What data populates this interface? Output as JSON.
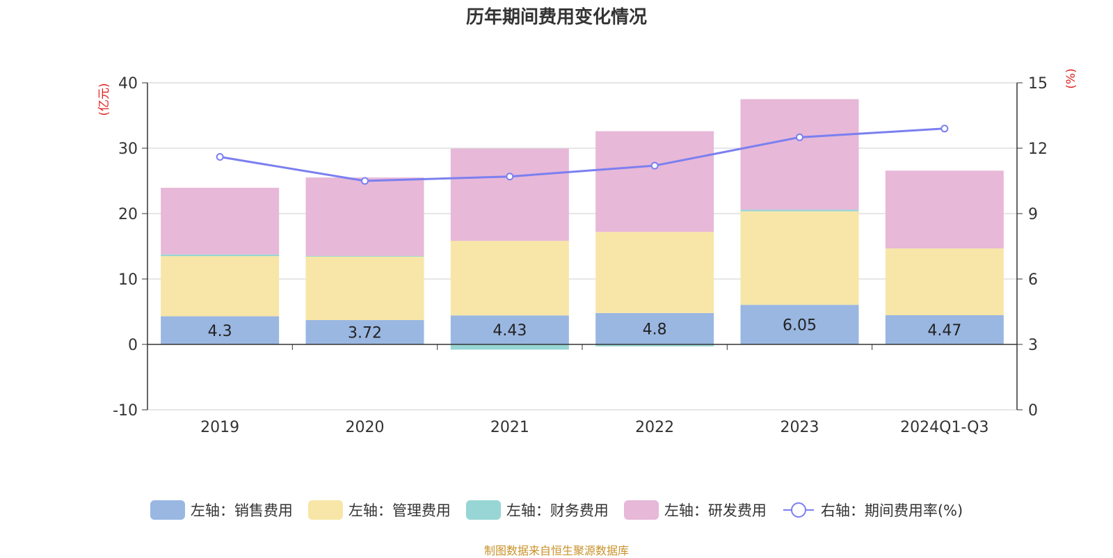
{
  "chart_data": {
    "type": "bar",
    "title": "历年期间费用变化情况",
    "categories": [
      "2019",
      "2020",
      "2021",
      "2022",
      "2023",
      "2024Q1-Q3"
    ],
    "series": [
      {
        "name": "左轴：销售费用",
        "axis": "left",
        "kind": "bar",
        "color": "#9ab7e2",
        "values": [
          4.3,
          3.72,
          4.43,
          4.8,
          6.05,
          4.47
        ]
      },
      {
        "name": "左轴：管理费用",
        "axis": "left",
        "kind": "bar",
        "color": "#f7e6a7",
        "values": [
          9.2,
          9.7,
          11.4,
          12.4,
          14.3,
          10.2
        ]
      },
      {
        "name": "左轴：财务费用",
        "axis": "left",
        "kind": "bar",
        "color": "#97d6d4",
        "values": [
          0.25,
          0.1,
          -0.8,
          -0.3,
          0.25,
          0.0
        ]
      },
      {
        "name": "左轴：研发费用",
        "axis": "left",
        "kind": "bar",
        "color": "#e7b8d8",
        "values": [
          10.2,
          12.0,
          14.1,
          15.4,
          16.9,
          11.9
        ]
      },
      {
        "name": "右轴：期间费用率(%)",
        "axis": "right",
        "kind": "line",
        "color": "#7b7ff0",
        "values": [
          11.6,
          10.5,
          10.7,
          11.2,
          12.5,
          12.9
        ]
      }
    ],
    "data_labels": [
      "4.3",
      "3.72",
      "4.43",
      "4.8",
      "6.05",
      "4.47"
    ],
    "left_axis": {
      "unit": "(亿元)",
      "min": -10,
      "max": 40,
      "ticks": [
        "-10",
        "0",
        "10",
        "20",
        "30",
        "40"
      ]
    },
    "right_axis": {
      "unit": "(%)",
      "min": 0,
      "max": 15,
      "ticks": [
        "0",
        "3",
        "6",
        "9",
        "12",
        "15"
      ]
    },
    "grid": true,
    "legend_position": "bottom"
  },
  "source_note": "制图数据来自恒生聚源数据库",
  "colors": {
    "axis_unit": "#e02020",
    "grid": "#cccccc",
    "axis": "#333333"
  }
}
